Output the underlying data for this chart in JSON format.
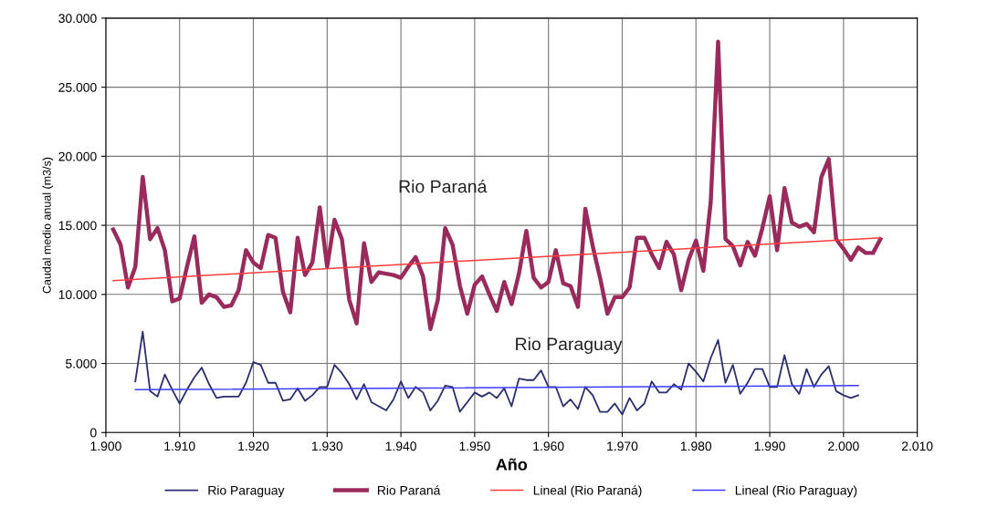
{
  "chart_data": {
    "type": "line",
    "xlabel": "Año",
    "ylabel": "Caudal medio anual (m3/s)",
    "xlim": [
      1900,
      2010
    ],
    "ylim": [
      0,
      30000
    ],
    "xticks": [
      {
        "value": 1900,
        "label": "1.900"
      },
      {
        "value": 1910,
        "label": "1.910"
      },
      {
        "value": 1920,
        "label": "1.920"
      },
      {
        "value": 1930,
        "label": "1.930"
      },
      {
        "value": 1940,
        "label": "1.940"
      },
      {
        "value": 1950,
        "label": "1.950"
      },
      {
        "value": 1960,
        "label": "1.960"
      },
      {
        "value": 1970,
        "label": "1.970"
      },
      {
        "value": 1980,
        "label": "1.980"
      },
      {
        "value": 1990,
        "label": "1.990"
      },
      {
        "value": 2000,
        "label": "2.000"
      },
      {
        "value": 2010,
        "label": "2.010"
      }
    ],
    "yticks": [
      0,
      {
        "value": 5000,
        "label": "5.000"
      },
      {
        "value": 10000,
        "label": "10.000"
      },
      {
        "value": 15000,
        "label": "15.000"
      },
      {
        "value": 20000,
        "label": "20.000"
      },
      {
        "value": 25000,
        "label": "25.000"
      },
      {
        "value": 30000,
        "label": "30.000"
      }
    ],
    "grid": true,
    "legend": "bottom",
    "marker": "none",
    "line_style": "solid",
    "series": [
      {
        "name": "Rio Paraguay",
        "color": "#2b2d6e",
        "x": [
          1904,
          1905,
          1906,
          1907,
          1908,
          1909,
          1910,
          1911,
          1912,
          1913,
          1914,
          1915,
          1916,
          1917,
          1918,
          1919,
          1920,
          1921,
          1922,
          1923,
          1924,
          1925,
          1926,
          1927,
          1928,
          1929,
          1930,
          1931,
          1932,
          1933,
          1934,
          1935,
          1936,
          1937,
          1938,
          1939,
          1940,
          1941,
          1942,
          1943,
          1944,
          1945,
          1946,
          1947,
          1948,
          1949,
          1950,
          1951,
          1952,
          1953,
          1954,
          1955,
          1956,
          1957,
          1958,
          1959,
          1960,
          1961,
          1962,
          1963,
          1964,
          1965,
          1966,
          1967,
          1968,
          1969,
          1970,
          1971,
          1972,
          1973,
          1974,
          1975,
          1976,
          1977,
          1978,
          1979,
          1980,
          1981,
          1982,
          1983,
          1984,
          1985,
          1986,
          1987,
          1988,
          1989,
          1990,
          1991,
          1992,
          1993,
          1994,
          1995,
          1996,
          1997,
          1998,
          1999,
          2000,
          2001,
          2002
        ],
        "values": [
          3700,
          7300,
          3000,
          2600,
          4200,
          3100,
          2100,
          3100,
          4000,
          4700,
          3500,
          2500,
          2600,
          2600,
          2600,
          3600,
          5100,
          4900,
          3600,
          3600,
          2300,
          2400,
          3200,
          2300,
          2700,
          3300,
          3300,
          4900,
          4300,
          3500,
          2400,
          3500,
          2200,
          1900,
          1600,
          2400,
          3700,
          2500,
          3300,
          2900,
          1600,
          2300,
          3400,
          3300,
          1500,
          2200,
          2900,
          2600,
          2900,
          2500,
          3200,
          1900,
          3900,
          3800,
          3800,
          4500,
          3300,
          3300,
          1900,
          2400,
          1700,
          3300,
          2700,
          1500,
          1500,
          2100,
          1300,
          2500,
          1600,
          2100,
          3700,
          2900,
          2900,
          3500,
          3100,
          5000,
          4400,
          3700,
          5400,
          6700,
          3600,
          4900,
          2800,
          3600,
          4600,
          4600,
          3300,
          3300,
          5600,
          3500,
          2800,
          4600,
          3300,
          4200,
          4800,
          3000,
          2700,
          2500,
          2700
        ]
      },
      {
        "name": "Rio Paraná",
        "color": "#9b2a5c",
        "x": [
          1901,
          1902,
          1903,
          1904,
          1905,
          1906,
          1907,
          1908,
          1909,
          1910,
          1911,
          1912,
          1913,
          1914,
          1915,
          1916,
          1917,
          1918,
          1919,
          1920,
          1921,
          1922,
          1923,
          1924,
          1925,
          1926,
          1927,
          1928,
          1929,
          1930,
          1931,
          1932,
          1933,
          1934,
          1935,
          1936,
          1937,
          1938,
          1939,
          1940,
          1941,
          1942,
          1943,
          1944,
          1945,
          1946,
          1947,
          1948,
          1949,
          1950,
          1951,
          1952,
          1953,
          1954,
          1955,
          1956,
          1957,
          1958,
          1959,
          1960,
          1961,
          1962,
          1963,
          1964,
          1965,
          1966,
          1967,
          1968,
          1969,
          1970,
          1971,
          1972,
          1973,
          1974,
          1975,
          1976,
          1977,
          1978,
          1979,
          1980,
          1981,
          1982,
          1983,
          1984,
          1985,
          1986,
          1987,
          1988,
          1989,
          1990,
          1991,
          1992,
          1993,
          1994,
          1995,
          1996,
          1997,
          1998,
          1999,
          2000,
          2001,
          2002,
          2003,
          2004,
          2005
        ],
        "values": [
          14700,
          13600,
          10500,
          12000,
          18500,
          14000,
          14800,
          13200,
          9500,
          9700,
          12000,
          14200,
          9400,
          10000,
          9800,
          9100,
          9200,
          10300,
          13200,
          12300,
          11900,
          14300,
          14100,
          10200,
          8700,
          14100,
          11400,
          12300,
          16300,
          12000,
          15400,
          14000,
          9600,
          7900,
          13700,
          10900,
          11600,
          11500,
          11400,
          11200,
          12000,
          12700,
          11300,
          7500,
          9600,
          14800,
          13600,
          10600,
          8600,
          10700,
          11300,
          10000,
          8800,
          10900,
          9300,
          11500,
          14600,
          11200,
          10500,
          10900,
          13200,
          10800,
          10600,
          9100,
          16200,
          13500,
          11200,
          8600,
          9800,
          9800,
          10500,
          14100,
          14100,
          12900,
          11900,
          13800,
          12900,
          10300,
          12500,
          13900,
          11700,
          16700,
          28300,
          14000,
          13500,
          12100,
          13800,
          12800,
          14800,
          17100,
          13200,
          17700,
          15200,
          14900,
          15100,
          14500,
          18500,
          19800,
          14000,
          13300,
          12500,
          13400,
          13000,
          13000,
          14000
        ]
      },
      {
        "name": "Lineal (Rio Paraná)",
        "color": "#ff3b3b",
        "x": [
          1901,
          2005
        ],
        "values": [
          11000,
          14100
        ]
      },
      {
        "name": "Lineal (Rio Paraguay)",
        "color": "#3c3cff",
        "x": [
          1904,
          2002
        ],
        "values": [
          3100,
          3400
        ]
      }
    ],
    "annotations": [
      "Rio Paraná",
      "Rio Paraguay"
    ]
  }
}
